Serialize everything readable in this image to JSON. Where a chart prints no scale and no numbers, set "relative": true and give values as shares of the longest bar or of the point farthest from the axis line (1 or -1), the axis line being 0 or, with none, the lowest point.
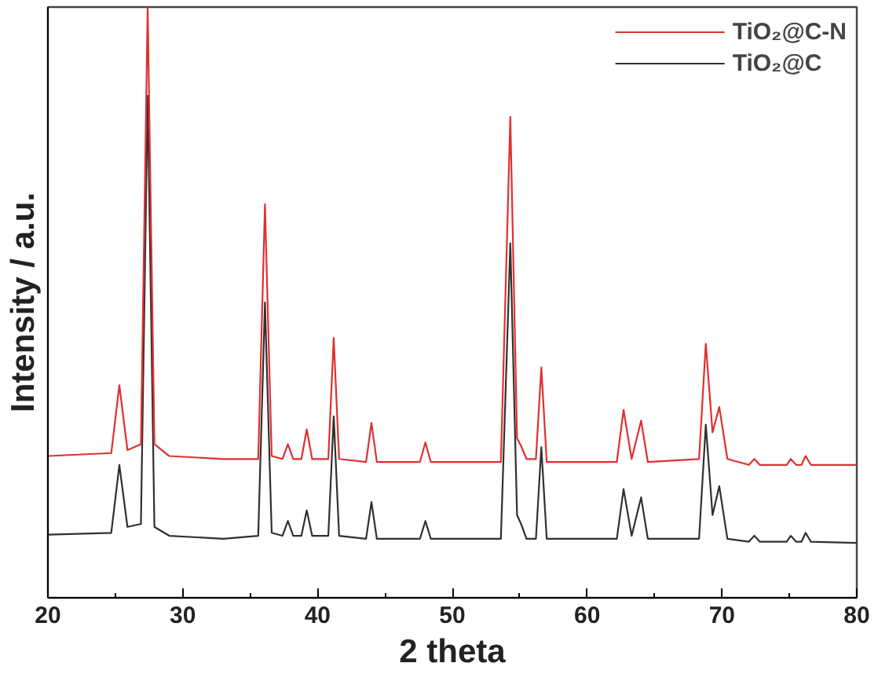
{
  "chart_data": {
    "type": "line",
    "relative": true,
    "xlabel": "2 theta",
    "ylabel": "Intensity / a.u.",
    "xlim": [
      20,
      80
    ],
    "xticks": [
      20,
      {
        "value": 25,
        "label": null
      },
      30,
      {
        "value": 35,
        "label": null
      },
      40,
      {
        "value": 45,
        "label": null
      },
      50,
      {
        "value": 55,
        "label": null
      },
      60,
      {
        "value": 65,
        "label": null
      },
      70,
      {
        "value": 75,
        "label": null
      },
      80
    ],
    "grid": false,
    "legend": "top right",
    "marker": "none",
    "line_style": "solid",
    "x": [
      20,
      24.7,
      25.3,
      25.9,
      26.9,
      27.4,
      27.9,
      29,
      33,
      35.6,
      36.1,
      36.6,
      37.4,
      37.8,
      38.2,
      38.8,
      39.2,
      39.6,
      40.8,
      41.2,
      41.6,
      43.6,
      44.0,
      44.4,
      47.6,
      48.0,
      48.4,
      53.6,
      54.3,
      54.8,
      55.1,
      55.5,
      56.2,
      56.6,
      57.0,
      62.2,
      62.7,
      63.3,
      64.0,
      64.5,
      68.3,
      68.8,
      69.3,
      69.8,
      70.4,
      72.0,
      72.4,
      72.8,
      74.8,
      75.1,
      75.5,
      75.9,
      76.2,
      76.6,
      80
    ],
    "series": [
      {
        "name": "TiO₂@C-N",
        "color": "#e03030",
        "values": [
          0.24,
          0.245,
          0.36,
          0.25,
          0.26,
          1.0,
          0.26,
          0.24,
          0.235,
          0.235,
          0.666,
          0.24,
          0.235,
          0.26,
          0.235,
          0.235,
          0.285,
          0.235,
          0.235,
          0.44,
          0.235,
          0.23,
          0.296,
          0.23,
          0.23,
          0.263,
          0.23,
          0.23,
          0.814,
          0.27,
          0.257,
          0.235,
          0.235,
          0.39,
          0.23,
          0.23,
          0.318,
          0.235,
          0.3,
          0.23,
          0.235,
          0.43,
          0.28,
          0.323,
          0.235,
          0.225,
          0.235,
          0.225,
          0.225,
          0.235,
          0.225,
          0.225,
          0.24,
          0.225,
          0.225
        ]
      },
      {
        "name": "TiO₂@C",
        "color": "#303030",
        "values": [
          0.107,
          0.11,
          0.225,
          0.12,
          0.125,
          0.85,
          0.12,
          0.105,
          0.1,
          0.105,
          0.5,
          0.11,
          0.105,
          0.13,
          0.105,
          0.105,
          0.148,
          0.105,
          0.105,
          0.307,
          0.105,
          0.1,
          0.162,
          0.1,
          0.1,
          0.13,
          0.1,
          0.1,
          0.6,
          0.14,
          0.125,
          0.1,
          0.1,
          0.255,
          0.1,
          0.1,
          0.184,
          0.105,
          0.17,
          0.1,
          0.1,
          0.293,
          0.14,
          0.189,
          0.1,
          0.095,
          0.105,
          0.095,
          0.095,
          0.105,
          0.095,
          0.095,
          0.11,
          0.095,
          0.093
        ]
      }
    ]
  }
}
